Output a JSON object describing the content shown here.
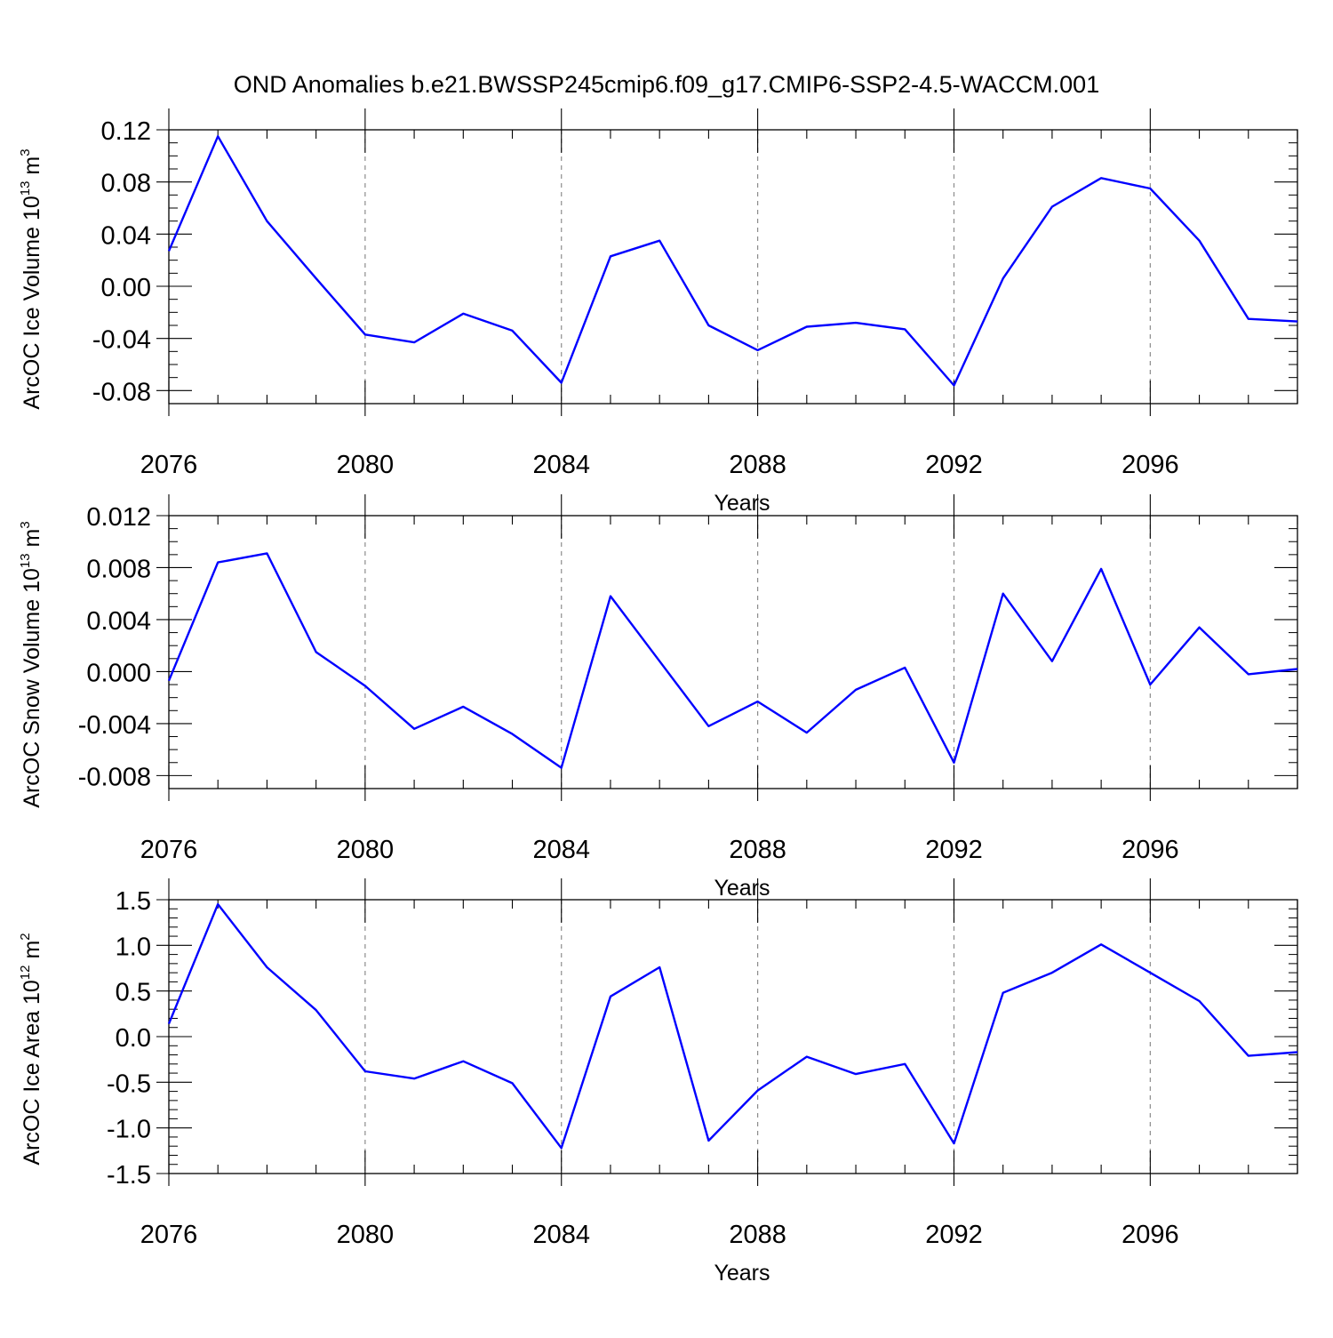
{
  "figure": {
    "title": "OND Anomalies b.e21.BWSSP245cmip6.f09_g17.CMIP6-SSP2-4.5-WACCM.001"
  },
  "colors": {
    "series": "#0000ff",
    "axis": "#000000",
    "grid": "#8c8c8c"
  },
  "chart_data": [
    {
      "type": "line",
      "title": "",
      "xlabel": "Years",
      "ylabel": {
        "prefix": "ArcOC Ice Volume 10",
        "exp": "13",
        "unit": " m",
        "unit_exp": "3"
      },
      "xlim": [
        2076,
        2099
      ],
      "ylim": [
        -0.09,
        0.12
      ],
      "xticks": [
        2076,
        2080,
        2084,
        2088,
        2092,
        2096
      ],
      "xtick_labels": [
        "2076",
        "2080",
        "2084",
        "2088",
        "2092",
        "2096"
      ],
      "yticks": [
        0.12,
        0.08,
        0.04,
        0.0,
        -0.04,
        -0.08
      ],
      "ytick_labels": [
        "0.12",
        "0.08",
        "0.04",
        "0.00",
        "-0.04",
        "-0.08"
      ],
      "grid": "dashed vertical lines at major x ticks",
      "series": [
        {
          "name": "ArcOC Ice Volume",
          "x": [
            2076,
            2077,
            2078,
            2079,
            2080,
            2081,
            2082,
            2083,
            2084,
            2085,
            2086,
            2087,
            2088,
            2089,
            2090,
            2091,
            2092,
            2093,
            2094,
            2095,
            2096,
            2097,
            2098,
            2099
          ],
          "values": [
            0.027,
            0.115,
            0.05,
            0.006,
            -0.037,
            -0.043,
            -0.021,
            -0.034,
            -0.074,
            0.023,
            0.035,
            -0.03,
            -0.049,
            -0.031,
            -0.028,
            -0.033,
            -0.076,
            0.006,
            0.061,
            0.083,
            0.075,
            0.035,
            -0.025,
            -0.027
          ]
        }
      ]
    },
    {
      "type": "line",
      "title": "",
      "xlabel": "Years",
      "ylabel": {
        "prefix": "ArcOC Snow Volume 10",
        "exp": "13",
        "unit": " m",
        "unit_exp": "3"
      },
      "xlim": [
        2076,
        2099
      ],
      "ylim": [
        -0.009,
        0.012
      ],
      "xticks": [
        2076,
        2080,
        2084,
        2088,
        2092,
        2096
      ],
      "xtick_labels": [
        "2076",
        "2080",
        "2084",
        "2088",
        "2092",
        "2096"
      ],
      "yticks": [
        0.012,
        0.008,
        0.004,
        0.0,
        -0.004,
        -0.008
      ],
      "ytick_labels": [
        "0.012",
        "0.008",
        "0.004",
        "0.000",
        "-0.004",
        "-0.008"
      ],
      "grid": "dashed vertical lines at major x ticks",
      "series": [
        {
          "name": "ArcOC Snow Volume",
          "x": [
            2076,
            2077,
            2078,
            2079,
            2080,
            2081,
            2082,
            2083,
            2084,
            2085,
            2086,
            2087,
            2088,
            2089,
            2090,
            2091,
            2092,
            2093,
            2094,
            2095,
            2096,
            2097,
            2098,
            2099
          ],
          "values": [
            -0.0007,
            0.0084,
            0.0091,
            0.0015,
            -0.0011,
            -0.0044,
            -0.0027,
            -0.0048,
            -0.0074,
            0.0058,
            0.0008,
            -0.0042,
            -0.0023,
            -0.0047,
            -0.0014,
            0.0003,
            -0.007,
            0.006,
            0.0008,
            0.0079,
            -0.001,
            0.0034,
            -0.0002,
            0.0002
          ]
        }
      ]
    },
    {
      "type": "line",
      "title": "",
      "xlabel": "Years",
      "ylabel": {
        "prefix": "ArcOC Ice Area 10",
        "exp": "12",
        "unit": " m",
        "unit_exp": "2"
      },
      "xlim": [
        2076,
        2099
      ],
      "ylim": [
        -1.5,
        1.5
      ],
      "xticks": [
        2076,
        2080,
        2084,
        2088,
        2092,
        2096
      ],
      "xtick_labels": [
        "2076",
        "2080",
        "2084",
        "2088",
        "2092",
        "2096"
      ],
      "yticks": [
        1.5,
        1.0,
        0.5,
        0.0,
        -0.5,
        -1.0,
        -1.5
      ],
      "ytick_labels": [
        "1.5",
        "1.0",
        "0.5",
        "0.0",
        "-0.5",
        "-1.0",
        "-1.5"
      ],
      "grid": "dashed vertical lines at major x ticks",
      "series": [
        {
          "name": "ArcOC Ice Area",
          "x": [
            2076,
            2077,
            2078,
            2079,
            2080,
            2081,
            2082,
            2083,
            2084,
            2085,
            2086,
            2087,
            2088,
            2089,
            2090,
            2091,
            2092,
            2093,
            2094,
            2095,
            2096,
            2097,
            2098,
            2099
          ],
          "values": [
            0.14,
            1.45,
            0.76,
            0.29,
            -0.38,
            -0.46,
            -0.27,
            -0.51,
            -1.22,
            0.44,
            0.76,
            -1.14,
            -0.59,
            -0.22,
            -0.41,
            -0.3,
            -1.17,
            0.48,
            0.7,
            1.01,
            0.7,
            0.39,
            -0.21,
            -0.17
          ]
        }
      ]
    }
  ]
}
